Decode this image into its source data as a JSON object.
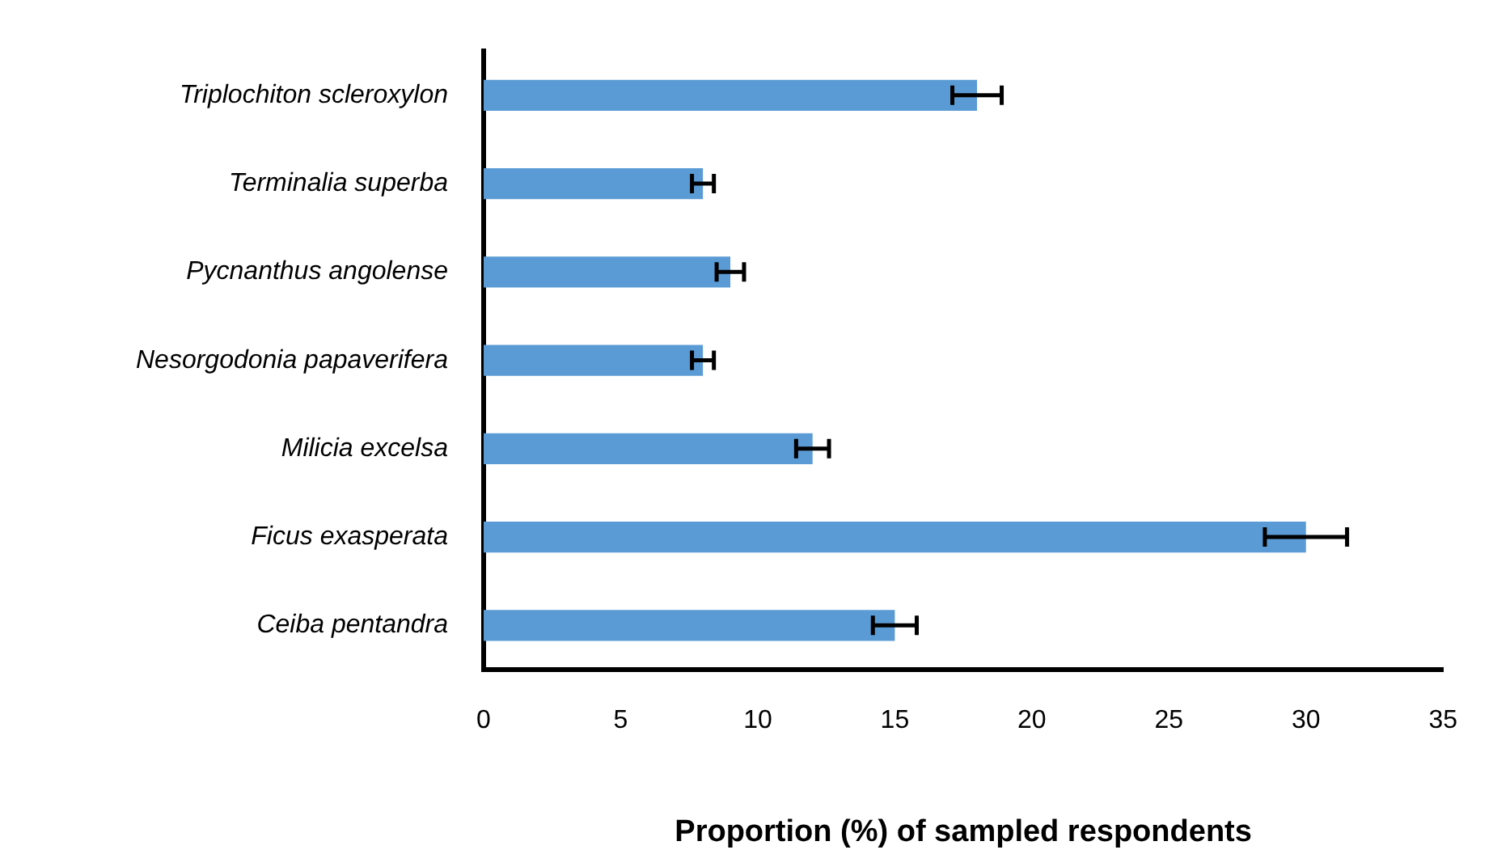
{
  "chart_data": {
    "type": "bar",
    "orientation": "horizontal",
    "xlabel": "Proportion (%) of sampled respondents",
    "categories": [
      "Triplochiton scleroxylon",
      "Terminalia superba",
      "Pycnanthus angolense",
      "Nesorgodonia papaverifera",
      "Milicia excelsa",
      "Ficus exasperata",
      "Ceiba pentandra"
    ],
    "values": [
      18,
      8,
      9,
      8,
      12,
      30,
      15
    ],
    "errors": [
      0.9,
      0.4,
      0.5,
      0.4,
      0.6,
      1.5,
      0.8
    ],
    "color": "#5b9bd5",
    "xlim": [
      0,
      35
    ],
    "xticks": [
      0,
      5,
      10,
      15,
      20,
      25,
      30,
      35
    ]
  }
}
